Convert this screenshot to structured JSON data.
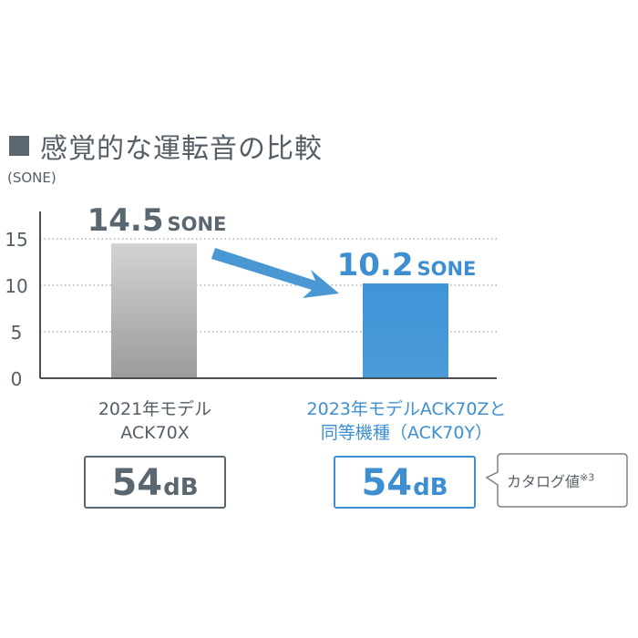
{
  "title": "感覚的な運転音の比較",
  "chart_data": {
    "type": "bar",
    "ylabel": "(SONE)",
    "ylim": [
      0,
      17
    ],
    "yticks": [
      0,
      5,
      10,
      15
    ],
    "grid": true,
    "categories": [
      "2021年モデル ACK70X",
      "2023年モデルACK70Zと同等機種（ACK70Y）"
    ],
    "values": [
      14.5,
      10.2
    ],
    "value_labels": [
      "14.5",
      "10.2"
    ],
    "value_unit": "SONE",
    "bar_colors": [
      "#b3b3b3",
      "#3d8fd1"
    ],
    "label_colors": [
      "#5b6770",
      "#3d8fd1"
    ]
  },
  "categories_display": {
    "first": {
      "line1": "2021年モデル",
      "line2": "ACK70X"
    },
    "second": {
      "line1": "2023年モデルACK70Zと",
      "line2": "同等機種（ACK70Y）"
    }
  },
  "db_boxes": {
    "first": {
      "value": "54",
      "unit": "dB"
    },
    "second": {
      "value": "54",
      "unit": "dB"
    }
  },
  "callout": {
    "text": "カタログ値",
    "note": "※3"
  },
  "colors": {
    "gray": "#5b6770",
    "blue": "#3d8fd1",
    "arrow": "#4a98d3"
  }
}
